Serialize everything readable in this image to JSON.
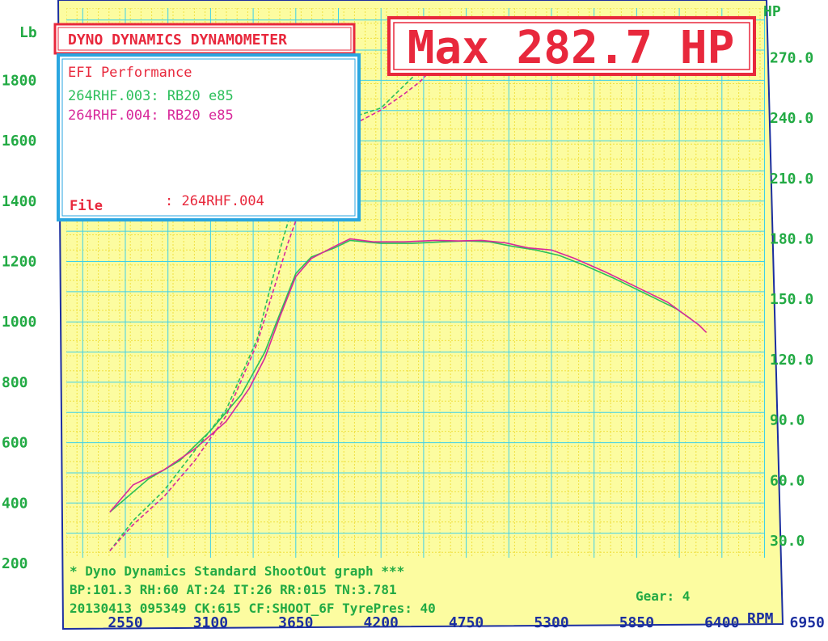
{
  "header": {
    "brand": "DYNO DYNAMICS DYNAMOMETER",
    "max_label": "Max 282.7 HP"
  },
  "legend_box": {
    "shop": "EFI Performance",
    "run1": "264RHF.003: RB20 e85",
    "run2": "264RHF.004: RB20 e85",
    "file_label": "File",
    "file_value": ": 264RHF.004"
  },
  "footer": {
    "line1": "* Dyno Dynamics Standard ShootOut graph ***",
    "line2": "BP:101.3 RH:60 AT:24 IT:26  RR:015 TN:3.781",
    "line3": "20130413 095349 CK:615 CF:SHOOT_6F TyrePres: 40",
    "gear": "Gear: 4"
  },
  "colors": {
    "background": "#fcfca0",
    "grid": "#3fd0e8",
    "grid_minor": "#f0e040",
    "frame": "#1c2fa0",
    "red": "#e8283c",
    "cyan": "#2aa6e0",
    "run1": "#2bbf5a",
    "run2": "#d8289a"
  },
  "chart_data": {
    "type": "line",
    "x_axis": {
      "label": "RPM",
      "ticks": [
        2550,
        3100,
        3650,
        4200,
        4750,
        5300,
        5850,
        6400,
        6950
      ]
    },
    "y_left": {
      "label": "Lb",
      "ticks": [
        200,
        400,
        600,
        800,
        1000,
        1200,
        1400,
        1600,
        1800
      ]
    },
    "y_right": {
      "label": "HP",
      "ticks": [
        "30.0",
        "60.0",
        "90.0",
        "120.0",
        "150.0",
        "180.0",
        "210.0",
        "240.0",
        "270.0"
      ]
    },
    "series": [
      {
        "name": "264RHF.003: RB20 e85",
        "axis": "lb",
        "points": [
          [
            2450,
            370
          ],
          [
            2700,
            480
          ],
          [
            2900,
            540
          ],
          [
            3100,
            640
          ],
          [
            3300,
            760
          ],
          [
            3450,
            900
          ],
          [
            3550,
            1030
          ],
          [
            3650,
            1160
          ],
          [
            3750,
            1215
          ],
          [
            3900,
            1245
          ],
          [
            4000,
            1270
          ],
          [
            4200,
            1260
          ],
          [
            4400,
            1260
          ],
          [
            4600,
            1265
          ],
          [
            4750,
            1268
          ],
          [
            4900,
            1265
          ],
          [
            5050,
            1250
          ],
          [
            5200,
            1238
          ],
          [
            5350,
            1220
          ],
          [
            5500,
            1190
          ],
          [
            5700,
            1145
          ],
          [
            5900,
            1095
          ],
          [
            6100,
            1045
          ],
          [
            6200,
            1010
          ]
        ]
      },
      {
        "name": "264RHF.004: RB20 e85",
        "axis": "lb",
        "points": [
          [
            2450,
            370
          ],
          [
            2600,
            460
          ],
          [
            2800,
            510
          ],
          [
            3000,
            580
          ],
          [
            3200,
            670
          ],
          [
            3350,
            780
          ],
          [
            3450,
            880
          ],
          [
            3550,
            1020
          ],
          [
            3650,
            1150
          ],
          [
            3750,
            1210
          ],
          [
            3900,
            1250
          ],
          [
            4000,
            1275
          ],
          [
            4150,
            1265
          ],
          [
            4350,
            1265
          ],
          [
            4550,
            1270
          ],
          [
            4700,
            1268
          ],
          [
            4850,
            1270
          ],
          [
            5000,
            1262
          ],
          [
            5150,
            1245
          ],
          [
            5300,
            1238
          ],
          [
            5450,
            1210
          ],
          [
            5650,
            1165
          ],
          [
            5850,
            1115
          ],
          [
            6050,
            1065
          ],
          [
            6250,
            990
          ],
          [
            6300,
            965
          ]
        ]
      },
      {
        "name": "264RHF.003: RB20 e85",
        "axis": "hp",
        "points": [
          [
            2450,
            25
          ],
          [
            2600,
            40
          ],
          [
            2800,
            55
          ],
          [
            3000,
            75
          ],
          [
            3200,
            95
          ],
          [
            3400,
            130
          ],
          [
            3550,
            175
          ],
          [
            3700,
            215
          ],
          [
            3850,
            235
          ],
          [
            4000,
            240
          ],
          [
            4200,
            245
          ],
          [
            4400,
            260
          ],
          [
            4550,
            270
          ],
          [
            4650,
            278
          ],
          [
            4800,
            282
          ],
          [
            5000,
            282
          ],
          [
            5300,
            282
          ],
          [
            5600,
            280
          ],
          [
            5800,
            275
          ],
          [
            6000,
            270
          ],
          [
            6100,
            261
          ]
        ]
      },
      {
        "name": "264RHF.004: RB20 e85",
        "axis": "hp",
        "points": [
          [
            2450,
            25
          ],
          [
            2600,
            38
          ],
          [
            2800,
            52
          ],
          [
            3000,
            70
          ],
          [
            3200,
            92
          ],
          [
            3400,
            128
          ],
          [
            3600,
            178
          ],
          [
            3700,
            200
          ],
          [
            3800,
            222
          ],
          [
            3900,
            232
          ],
          [
            4050,
            238
          ],
          [
            4200,
            244
          ],
          [
            4350,
            252
          ],
          [
            4450,
            258
          ],
          [
            4600,
            270
          ],
          [
            4700,
            278
          ]
        ]
      }
    ]
  }
}
